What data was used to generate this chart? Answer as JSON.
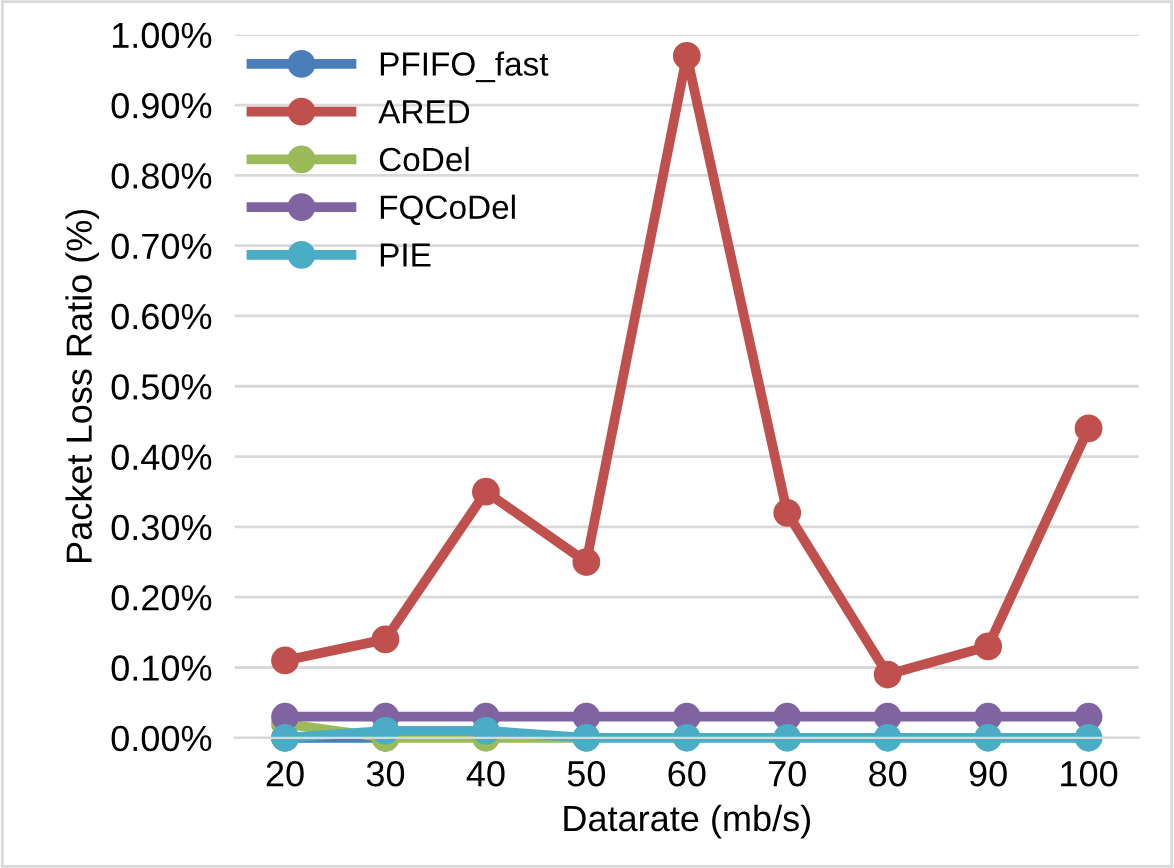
{
  "chart_data": {
    "type": "line",
    "xlabel": "Datarate (mb/s)",
    "ylabel": "Packet Loss Ratio (%)",
    "categories": [
      "20",
      "30",
      "40",
      "50",
      "60",
      "70",
      "80",
      "90",
      "100"
    ],
    "series": [
      {
        "name": "PFIFO_fast",
        "color": "#4a7ebb",
        "values": [
          0,
          0,
          null,
          null,
          null,
          null,
          null,
          null,
          null
        ]
      },
      {
        "name": "ARED",
        "color": "#c0504d",
        "values": [
          0.11,
          0.14,
          0.35,
          0.25,
          0.97,
          0.32,
          0.09,
          0.13,
          0.44
        ]
      },
      {
        "name": "CoDel",
        "color": "#9bbb59",
        "values": [
          0.02,
          0,
          0,
          0,
          null,
          null,
          null,
          null,
          null
        ]
      },
      {
        "name": "FQCoDel",
        "color": "#8064a2",
        "values": [
          0.03,
          0.03,
          0.03,
          0.03,
          0.03,
          0.03,
          0.03,
          0.03,
          0.03
        ]
      },
      {
        "name": "PIE",
        "color": "#4bacc6",
        "values": [
          0,
          0.01,
          0.01,
          0,
          0,
          0,
          0,
          0,
          0
        ]
      }
    ],
    "ylim": [
      0,
      1.0
    ],
    "yticks": [
      {
        "value": 0,
        "label": "0.00%"
      },
      {
        "value": 0.1,
        "label": "0.10%"
      },
      {
        "value": 0.2,
        "label": "0.20%"
      },
      {
        "value": 0.3,
        "label": "0.30%"
      },
      {
        "value": 0.4,
        "label": "0.40%"
      },
      {
        "value": 0.5,
        "label": "0.50%"
      },
      {
        "value": 0.6,
        "label": "0.60%"
      },
      {
        "value": 0.7,
        "label": "0.70%"
      },
      {
        "value": 0.8,
        "label": "0.80%"
      },
      {
        "value": 0.9,
        "label": "0.90%"
      },
      {
        "value": 1.0,
        "label": "1.00%"
      }
    ],
    "grid": "y",
    "legend": "top left",
    "marker": "circle",
    "line_style": "solid"
  }
}
